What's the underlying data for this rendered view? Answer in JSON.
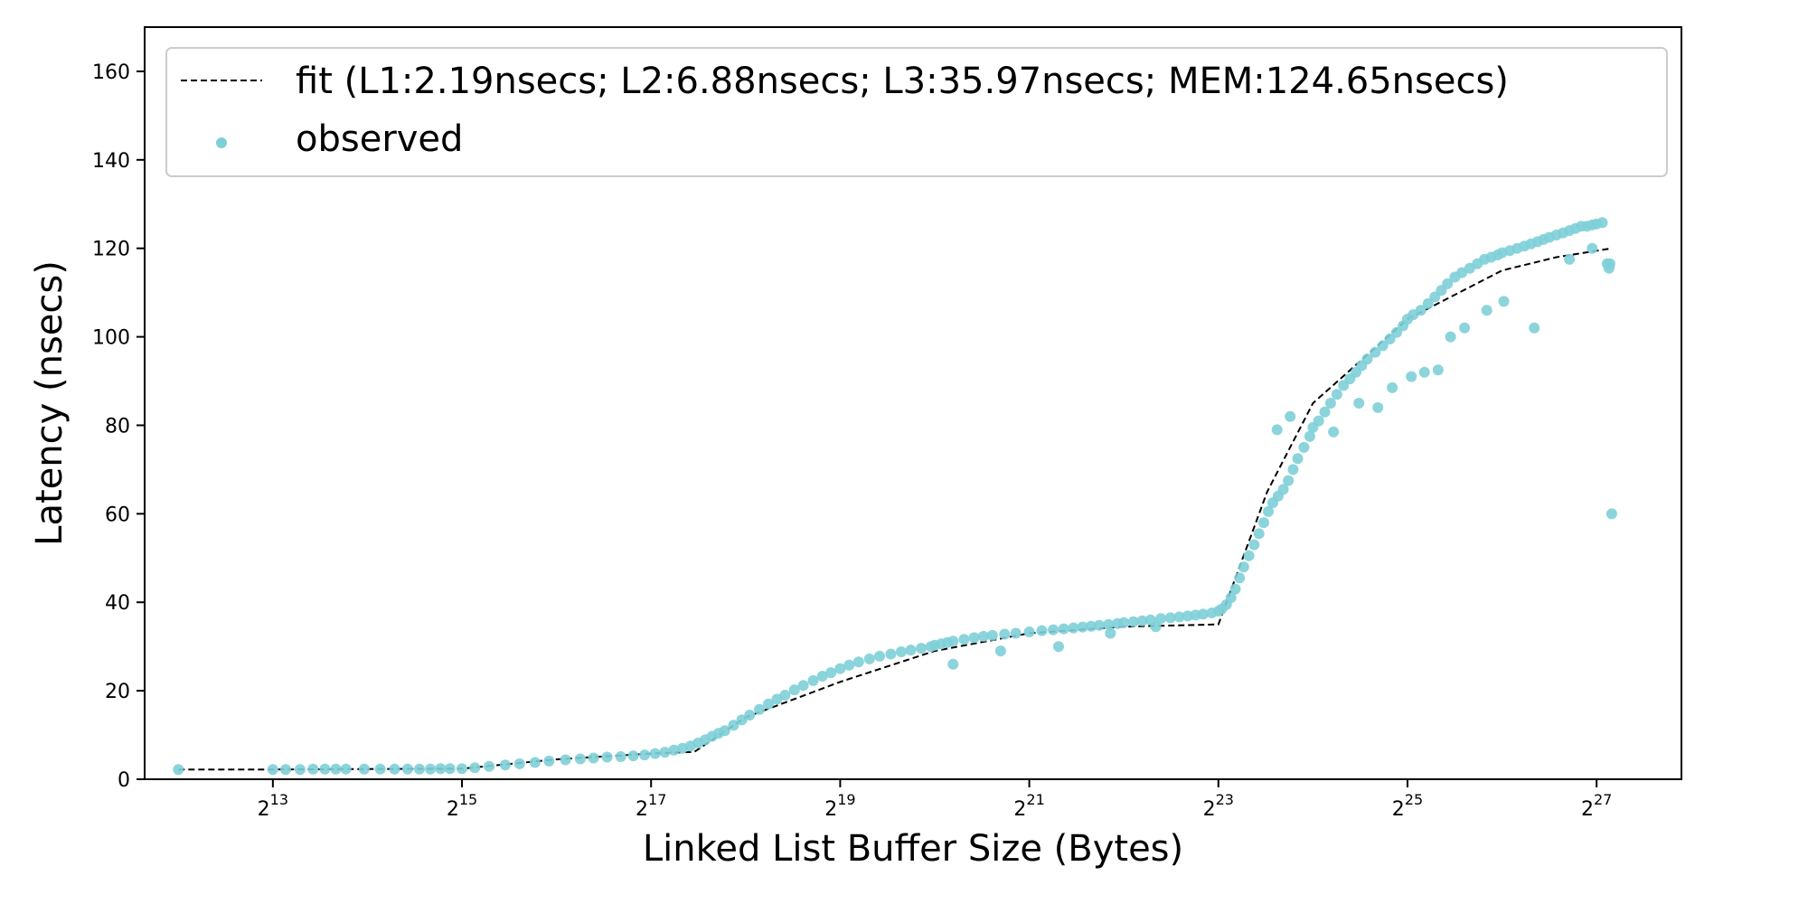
{
  "chart_data": {
    "type": "scatter",
    "xlabel": "Linked List Buffer Size (Bytes)",
    "ylabel": "Latency (nsecs)",
    "x_scale": "log2",
    "xlim": [
      3200,
      250000000
    ],
    "ylim": [
      0,
      170
    ],
    "x_ticks": [
      {
        "value": 8192,
        "base": "2",
        "exp": "13"
      },
      {
        "value": 32768,
        "base": "2",
        "exp": "15"
      },
      {
        "value": 131072,
        "base": "2",
        "exp": "17"
      },
      {
        "value": 524288,
        "base": "2",
        "exp": "19"
      },
      {
        "value": 2097152,
        "base": "2",
        "exp": "21"
      },
      {
        "value": 8388608,
        "base": "2",
        "exp": "23"
      },
      {
        "value": 33554432,
        "base": "2",
        "exp": "25"
      },
      {
        "value": 134217728,
        "base": "2",
        "exp": "27"
      }
    ],
    "y_ticks": [
      {
        "value": 0,
        "label": "0"
      },
      {
        "value": 20,
        "label": "20"
      },
      {
        "value": 40,
        "label": "40"
      },
      {
        "value": 60,
        "label": "60"
      },
      {
        "value": 80,
        "label": "80"
      },
      {
        "value": 100,
        "label": "100"
      },
      {
        "value": 120,
        "label": "120"
      },
      {
        "value": 140,
        "label": "140"
      },
      {
        "value": 160,
        "label": "160"
      }
    ],
    "grid": false,
    "legend_position": "top",
    "colors": {
      "observed": "#7ecfd8",
      "fit": "#000000"
    },
    "series": [
      {
        "name": "fit (L1:2.19nsecs; L2:6.88nsecs; L3:35.97nsecs; MEM:124.65nsecs)",
        "style": "dashed-line",
        "x": [
          4096,
          8192,
          16384,
          32768,
          65536,
          131072,
          180000,
          262144,
          524288,
          1048576,
          2097152,
          4194304,
          8388608,
          12000000,
          16777216,
          33554432,
          67108864,
          100000000,
          150000000
        ],
        "y": [
          2.2,
          2.2,
          2.3,
          2.4,
          4.5,
          5.8,
          6.2,
          14,
          22,
          29,
          33,
          34.5,
          35,
          65,
          85,
          104,
          115,
          118,
          120
        ]
      },
      {
        "name": "observed",
        "style": "points",
        "x": [
          4096,
          8192,
          9000,
          10000,
          11000,
          12000,
          13000,
          14000,
          16000,
          18000,
          20000,
          22000,
          24000,
          26000,
          28000,
          30000,
          32768,
          36000,
          40000,
          45000,
          50000,
          56000,
          62000,
          70000,
          78000,
          86000,
          95000,
          105000,
          115000,
          125000,
          135000,
          145000,
          155000,
          165000,
          175000,
          185000,
          195000,
          205000,
          215000,
          225000,
          240000,
          255000,
          270000,
          290000,
          310000,
          330000,
          350000,
          375000,
          400000,
          430000,
          460000,
          490000,
          524288,
          560000,
          600000,
          650000,
          700000,
          760000,
          820000,
          880000,
          950000,
          1020000,
          1048576,
          1100000,
          1150000,
          1200000,
          1300000,
          1400000,
          1500000,
          1600000,
          1750000,
          1900000,
          2097152,
          2300000,
          2500000,
          2700000,
          2900000,
          3100000,
          3300000,
          3500000,
          3750000,
          4000000,
          4194304,
          4500000,
          4800000,
          5100000,
          5500000,
          5900000,
          6300000,
          6700000,
          7100000,
          7500000,
          8000000,
          8388608,
          8600000,
          8900000,
          9200000,
          9500000,
          9800000,
          10100000,
          10500000,
          10900000,
          11300000,
          11700000,
          12100000,
          12500000,
          13000000,
          13500000,
          14000000,
          14500000,
          15000000,
          15700000,
          16400000,
          16777216,
          17500000,
          18300000,
          19100000,
          20000000,
          21000000,
          22000000,
          23000000,
          24000000,
          25000000,
          26500000,
          28000000,
          29500000,
          31000000,
          32500000,
          33554432,
          35000000,
          37000000,
          39000000,
          41000000,
          43000000,
          45000000,
          47500000,
          50000000,
          53000000,
          56000000,
          59000000,
          62000000,
          65000000,
          67108864,
          71000000,
          75000000,
          79000000,
          83000000,
          87000000,
          91000000,
          95000000,
          100000000,
          105000000,
          110000000,
          115000000,
          120000000,
          125000000,
          130000000,
          134217728,
          140000000,
          145000000,
          150000000,
          12900000,
          14200000,
          19500000,
          23500000,
          27000000,
          30000000,
          34500000,
          38000000,
          42000000,
          46000000,
          51000000,
          60000000,
          68000000,
          85000000,
          110000000,
          130000000,
          147000000,
          148000000,
          1200000,
          1700000,
          2600000,
          3800000,
          5300000
        ],
        "y": [
          2.2,
          2.2,
          2.2,
          2.2,
          2.3,
          2.3,
          2.3,
          2.3,
          2.3,
          2.3,
          2.3,
          2.3,
          2.3,
          2.3,
          2.4,
          2.4,
          2.4,
          2.6,
          2.9,
          3.2,
          3.5,
          3.8,
          4.1,
          4.4,
          4.6,
          4.8,
          5.0,
          5.1,
          5.3,
          5.5,
          5.8,
          6.1,
          6.6,
          7.0,
          7.5,
          8.2,
          8.9,
          9.7,
          10.4,
          11.0,
          12.2,
          13.4,
          14.5,
          15.8,
          17.0,
          18.1,
          19.0,
          20.2,
          21.2,
          22.3,
          23.3,
          24.1,
          25.0,
          25.8,
          26.5,
          27.2,
          27.8,
          28.3,
          28.8,
          29.2,
          29.6,
          30.0,
          30.3,
          30.6,
          30.9,
          31.2,
          31.6,
          32.0,
          32.3,
          32.5,
          32.8,
          33.0,
          33.3,
          33.6,
          33.8,
          34.0,
          34.2,
          34.4,
          34.6,
          34.8,
          35.0,
          35.2,
          35.4,
          35.6,
          35.8,
          36.0,
          36.3,
          36.5,
          36.7,
          36.9,
          37.1,
          37.3,
          37.6,
          38.0,
          38.5,
          39.5,
          41.0,
          43.0,
          45.5,
          48.0,
          50.5,
          53.0,
          55.5,
          58.0,
          60.5,
          62.5,
          64.0,
          65.5,
          67.5,
          70.0,
          72.5,
          75.0,
          77.5,
          79.5,
          81.0,
          83.0,
          85.0,
          87.0,
          89.0,
          90.5,
          92.0,
          93.5,
          95.0,
          96.5,
          98.0,
          99.5,
          101.0,
          102.5,
          104.0,
          105.0,
          106.0,
          107.5,
          109.0,
          110.5,
          112.0,
          113.5,
          114.5,
          115.5,
          116.5,
          117.5,
          118.0,
          118.5,
          119.0,
          119.5,
          120.0,
          120.5,
          121.0,
          121.5,
          122.0,
          122.5,
          123.0,
          123.5,
          124.0,
          124.5,
          125.0,
          125.0,
          125.3,
          125.5,
          125.8,
          116.5,
          60.0,
          79.0,
          82.0,
          78.5,
          85.0,
          84.0,
          88.5,
          91.0,
          92.0,
          92.5,
          100.0,
          102.0,
          106.0,
          108.0,
          102.0,
          117.5,
          120.0,
          115.5,
          116.5,
          26.0,
          29.0,
          30.0,
          33.0,
          34.5
        ]
      }
    ]
  }
}
